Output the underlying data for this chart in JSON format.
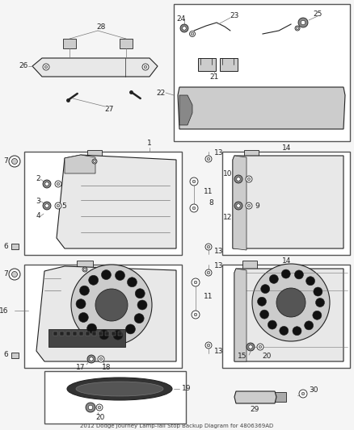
{
  "title": "2012 Dodge Journey Lamp-Tail Stop Backup Diagram for 4806369AD",
  "bg_color": "#f5f5f5",
  "fig_width": 4.38,
  "fig_height": 5.33,
  "dpi": 100,
  "gray": "#777777",
  "dark": "#222222",
  "light_gray": "#bbbbbb",
  "mid_gray": "#999999",
  "box_color": "#dddddd"
}
